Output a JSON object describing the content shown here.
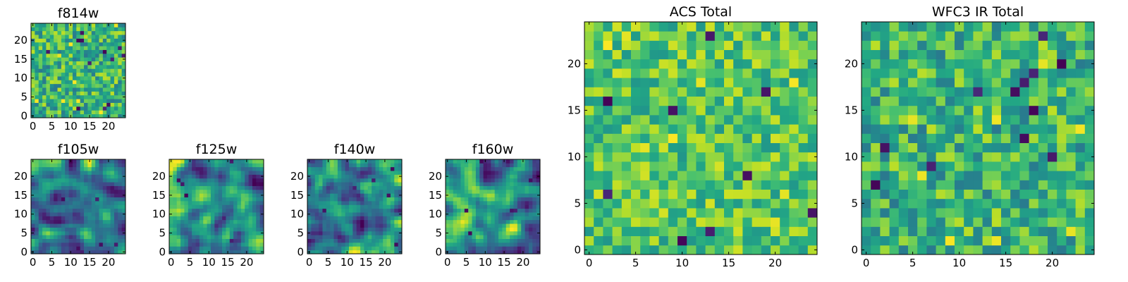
{
  "chart_data": [
    {
      "type": "heatmap",
      "title": "f814w",
      "colormap": "viridis",
      "grid_size": [
        25,
        25
      ],
      "xlim": [
        0,
        24
      ],
      "ylim": [
        0,
        24
      ],
      "xticks": [
        "0",
        "5",
        "10",
        "15",
        "20"
      ],
      "yticks": [
        "0",
        "5",
        "10",
        "15",
        "20"
      ],
      "texture": "pixel-noise",
      "seed": 11,
      "grid": false
    },
    {
      "type": "heatmap",
      "title": "f105w",
      "colormap": "viridis",
      "grid_size": [
        25,
        25
      ],
      "xlim": [
        0,
        24
      ],
      "ylim": [
        0,
        24
      ],
      "xticks": [
        "0",
        "5",
        "10",
        "15",
        "20"
      ],
      "yticks": [
        "0",
        "5",
        "10",
        "15",
        "20"
      ],
      "texture": "smooth-noise",
      "seed": 23,
      "grid": false
    },
    {
      "type": "heatmap",
      "title": "f125w",
      "colormap": "viridis",
      "grid_size": [
        25,
        25
      ],
      "xlim": [
        0,
        24
      ],
      "ylim": [
        0,
        24
      ],
      "xticks": [
        "0",
        "5",
        "10",
        "15",
        "20"
      ],
      "yticks": [
        "0",
        "5",
        "10",
        "15",
        "20"
      ],
      "texture": "smooth-noise",
      "seed": 37,
      "grid": false
    },
    {
      "type": "heatmap",
      "title": "f140w",
      "colormap": "viridis",
      "grid_size": [
        25,
        25
      ],
      "xlim": [
        0,
        24
      ],
      "ylim": [
        0,
        24
      ],
      "xticks": [
        "0",
        "5",
        "10",
        "15",
        "20"
      ],
      "yticks": [
        "0",
        "5",
        "10",
        "15",
        "20"
      ],
      "texture": "smooth-noise",
      "seed": 41,
      "grid": false
    },
    {
      "type": "heatmap",
      "title": "f160w",
      "colormap": "viridis",
      "grid_size": [
        25,
        25
      ],
      "xlim": [
        0,
        24
      ],
      "ylim": [
        0,
        24
      ],
      "xticks": [
        "0",
        "5",
        "10",
        "15",
        "20"
      ],
      "yticks": [
        "0",
        "5",
        "10",
        "15",
        "20"
      ],
      "texture": "smooth-noise",
      "seed": 53,
      "grid": false
    },
    {
      "type": "heatmap",
      "title": "ACS Total",
      "colormap": "viridis",
      "grid_size": [
        25,
        25
      ],
      "xlim": [
        0,
        24
      ],
      "ylim": [
        0,
        24
      ],
      "xticks": [
        "0",
        "5",
        "10",
        "15",
        "20"
      ],
      "yticks": [
        "0",
        "5",
        "10",
        "15",
        "20"
      ],
      "texture": "pixel-noise-bright",
      "seed": 67,
      "grid": false
    },
    {
      "type": "heatmap",
      "title": "WFC3 IR Total",
      "colormap": "viridis",
      "grid_size": [
        25,
        25
      ],
      "xlim": [
        0,
        24
      ],
      "ylim": [
        0,
        24
      ],
      "xticks": [
        "0",
        "5",
        "10",
        "15",
        "20"
      ],
      "yticks": [
        "0",
        "5",
        "10",
        "15",
        "20"
      ],
      "texture": "pixel-noise",
      "seed": 79,
      "grid": false
    }
  ]
}
